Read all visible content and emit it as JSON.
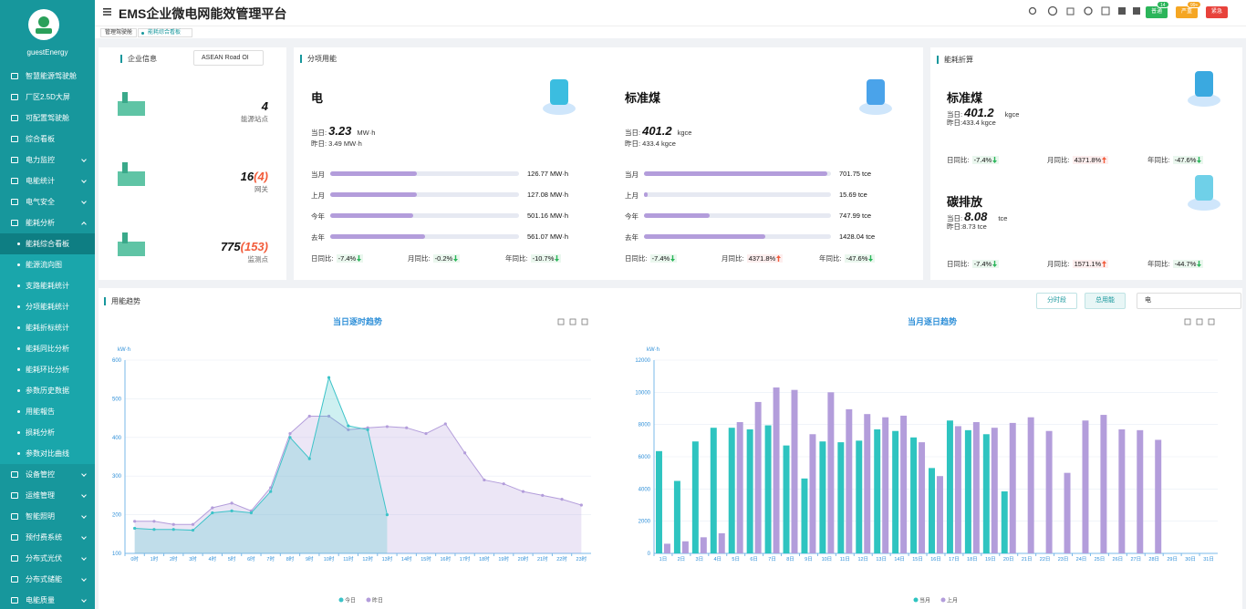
{
  "sidebar": {
    "user": "guestEnergy",
    "menu": [
      {
        "label": "智慧能源驾驶舱"
      },
      {
        "label": "厂区2.5D大屏"
      },
      {
        "label": "可配置驾驶舱"
      },
      {
        "label": "综合看板"
      },
      {
        "label": "电力监控"
      },
      {
        "label": "电能统计"
      },
      {
        "label": "电气安全"
      },
      {
        "label": "能耗分析",
        "expanded": true,
        "children": [
          {
            "label": "能耗综合看板",
            "active": true
          },
          {
            "label": "能源流向图"
          },
          {
            "label": "支路能耗统计"
          },
          {
            "label": "分项能耗统计"
          },
          {
            "label": "能耗折标统计"
          },
          {
            "label": "能耗同比分析"
          },
          {
            "label": "能耗环比分析"
          },
          {
            "label": "参数历史数据"
          },
          {
            "label": "用能報告"
          },
          {
            "label": "损耗分析"
          },
          {
            "label": "参数对比曲线"
          }
        ]
      },
      {
        "label": "设备管控"
      },
      {
        "label": "运维管理"
      },
      {
        "label": "智能照明"
      },
      {
        "label": "预付费系统"
      },
      {
        "label": "分布式光伏"
      },
      {
        "label": "分布式储能"
      },
      {
        "label": "电能质量"
      }
    ]
  },
  "header": {
    "title": "EMS企业微电网能效管理平台",
    "badges": [
      {
        "label": "普通",
        "count": "14",
        "color": "#2bb55a"
      },
      {
        "label": "严重",
        "count": "99+",
        "color": "#f5a623"
      },
      {
        "label": "紧急",
        "color": "#e8423b"
      }
    ]
  },
  "tabs": [
    "管理驾驶舱",
    "能耗综合看板"
  ],
  "company": {
    "title": "企业信息",
    "select": "ASEAN Road OI",
    "stats": [
      {
        "value": "4",
        "label": "能源站点"
      },
      {
        "value": "16",
        "alarm": "(4)",
        "label": "网关"
      },
      {
        "value": "775",
        "alarm": "(153)",
        "label": "监测点"
      }
    ]
  },
  "sub_energy": {
    "title": "分项用能",
    "items": [
      {
        "name": "电",
        "today_label": "当日:",
        "today": "3.23",
        "unit": "MW·h",
        "yesterday": "昨日: 3.49 MW·h",
        "rows": [
          {
            "label": "当月",
            "value": "126.77 MW·h",
            "progress": 46
          },
          {
            "label": "上月",
            "value": "127.08 MW·h",
            "progress": 46
          },
          {
            "label": "今年",
            "value": "501.16 MW·h",
            "progress": 44
          },
          {
            "label": "去年",
            "value": "561.07 MW·h",
            "progress": 50
          }
        ],
        "ratios": [
          {
            "label": "日同比:",
            "value": "-7.4%",
            "trend": "down"
          },
          {
            "label": "月同比:",
            "value": "-0.2%",
            "trend": "down"
          },
          {
            "label": "年同比:",
            "value": "-10.7%",
            "trend": "down"
          }
        ]
      },
      {
        "name": "标准煤",
        "today_label": "当日:",
        "today": "401.2",
        "unit": "kgce",
        "yesterday": "昨日: 433.4 kgce",
        "rows": [
          {
            "label": "当月",
            "value": "701.75 tce",
            "progress": 98
          },
          {
            "label": "上月",
            "value": "15.69 tce",
            "progress": 2
          },
          {
            "label": "今年",
            "value": "747.99 tce",
            "progress": 35
          },
          {
            "label": "去年",
            "value": "1428.04 tce",
            "progress": 65
          }
        ],
        "ratios": [
          {
            "label": "日同比:",
            "value": "-7.4%",
            "trend": "down"
          },
          {
            "label": "月同比:",
            "value": "4371.8%",
            "trend": "up"
          },
          {
            "label": "年同比:",
            "value": "-47.6%",
            "trend": "down"
          }
        ]
      }
    ]
  },
  "conversion": {
    "title": "能耗折算",
    "items": [
      {
        "name": "标准煤",
        "today_label": "当日:",
        "today": "401.2",
        "unit": "kgce",
        "yesterday": "昨日:433.4 kgce",
        "ratios": [
          {
            "label": "日同比:",
            "value": "-7.4%",
            "trend": "down"
          },
          {
            "label": "月同比:",
            "value": "4371.8%",
            "trend": "up"
          },
          {
            "label": "年同比:",
            "value": "-47.6%",
            "trend": "down"
          }
        ]
      },
      {
        "name": "碳排放",
        "today_label": "当日:",
        "today": "8.08",
        "unit": "tce",
        "yesterday": "昨日:8.73 tce",
        "ratios": [
          {
            "label": "日同比:",
            "value": "-7.4%",
            "trend": "down"
          },
          {
            "label": "月同比:",
            "value": "1571.1%",
            "trend": "up"
          },
          {
            "label": "年同比:",
            "value": "-44.7%",
            "trend": "down"
          }
        ]
      }
    ]
  },
  "trend": {
    "title": "用能趋势",
    "buttons": [
      "分时段",
      "总用能"
    ],
    "select": "电"
  },
  "chart_data": [
    {
      "type": "line",
      "title": "当日逐时趋势",
      "y_label": "kW·h",
      "categories": [
        "0时",
        "1时",
        "2时",
        "3时",
        "4时",
        "5时",
        "6时",
        "7时",
        "8时",
        "9时",
        "10时",
        "11时",
        "12时",
        "13时",
        "14时",
        "15时",
        "16时",
        "17时",
        "18时",
        "19时",
        "20时",
        "21时",
        "22时",
        "23时"
      ],
      "series": [
        {
          "name": "今日",
          "color": "#3cc3c8",
          "values": [
            165,
            162,
            162,
            160,
            205,
            210,
            205,
            260,
            400,
            345,
            555,
            430,
            420,
            200,
            null,
            null,
            null,
            null,
            null,
            null,
            null,
            null,
            null,
            null
          ]
        },
        {
          "name": "昨日",
          "color": "#b39ddb",
          "values": [
            183,
            183,
            175,
            175,
            218,
            230,
            210,
            270,
            410,
            455,
            455,
            420,
            425,
            428,
            425,
            410,
            435,
            360,
            290,
            280,
            260,
            250,
            240,
            225
          ]
        }
      ],
      "ylim": [
        100,
        600
      ],
      "yticks": [
        100,
        200,
        300,
        400,
        500,
        600
      ],
      "grid": true
    },
    {
      "type": "bar",
      "title": "当月逐日趋势",
      "y_label": "kW·h",
      "categories": [
        "1日",
        "2日",
        "3日",
        "4日",
        "5日",
        "6日",
        "7日",
        "8日",
        "9日",
        "10日",
        "11日",
        "12日",
        "13日",
        "14日",
        "15日",
        "16日",
        "17日",
        "18日",
        "19日",
        "20日",
        "21日",
        "22日",
        "23日",
        "24日",
        "25日",
        "26日",
        "27日",
        "28日",
        "29日",
        "30日",
        "31日"
      ],
      "series": [
        {
          "name": "当月",
          "color": "#2ec4c0",
          "values": [
            6350,
            4500,
            6950,
            7800,
            7800,
            7700,
            7950,
            6700,
            4650,
            6950,
            6900,
            7000,
            7700,
            7600,
            7200,
            5300,
            8250,
            7650,
            7400,
            3850,
            null,
            null,
            null,
            null,
            null,
            null,
            null,
            null,
            null,
            null,
            null
          ]
        },
        {
          "name": "上月",
          "color": "#b39ddb",
          "values": [
            600,
            750,
            1000,
            1250,
            8150,
            9400,
            10300,
            10150,
            7400,
            10000,
            8950,
            8650,
            8450,
            8550,
            6900,
            4800,
            7900,
            8150,
            7800,
            8100,
            8450,
            7600,
            5000,
            8250,
            8600,
            7700,
            7650,
            7050,
            null,
            null,
            null
          ]
        }
      ],
      "ylim": [
        0,
        12000
      ],
      "yticks": [
        0,
        2000,
        4000,
        6000,
        8000,
        10000,
        12000
      ],
      "grid": true
    }
  ]
}
